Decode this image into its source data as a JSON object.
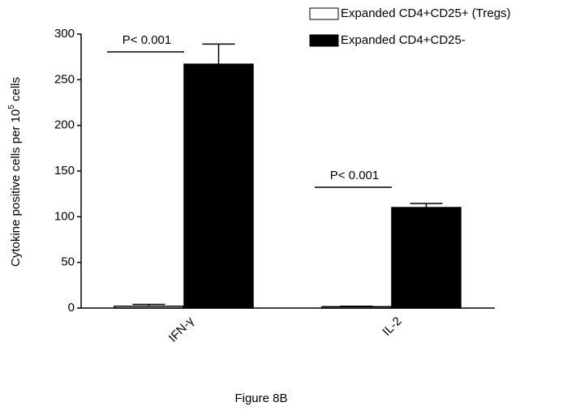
{
  "chart_data": {
    "type": "bar",
    "caption": "Figure 8B",
    "ylabel": [
      "Cytokine positive cells per 10",
      "5",
      " cells"
    ],
    "categories": [
      "IFN-γ",
      "IL-2"
    ],
    "series": [
      {
        "name": "Expanded CD4+CD25+ (Tregs)",
        "color": "#ffffff",
        "values": [
          2,
          1.5
        ],
        "errors": [
          2,
          0.5
        ]
      },
      {
        "name": "Expanded CD4+CD25-",
        "color": "#000000",
        "values": [
          267,
          110
        ],
        "errors": [
          22,
          4.5
        ]
      }
    ],
    "annotations": [
      "P< 0.001",
      "P< 0.001"
    ],
    "ylim": [
      0,
      300
    ],
    "yticks": [
      0,
      50,
      100,
      150,
      200,
      250,
      300
    ],
    "grid": false
  }
}
